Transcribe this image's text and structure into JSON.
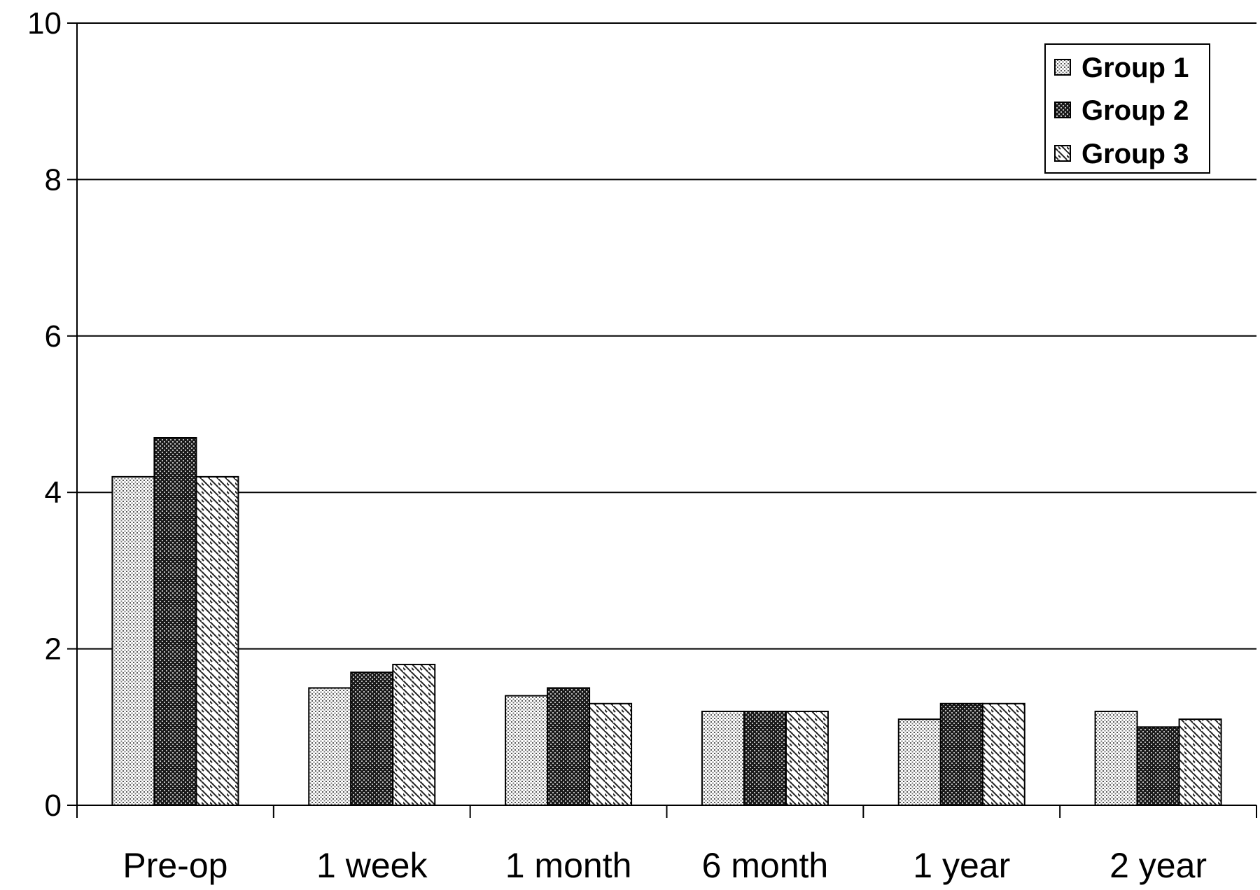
{
  "chart_data": {
    "type": "bar",
    "categories": [
      "Pre-op",
      "1 week",
      "1 month",
      "6 month",
      "1 year",
      "2 year"
    ],
    "series": [
      {
        "name": "Group 1",
        "values": [
          4.2,
          1.5,
          1.4,
          1.2,
          1.1,
          1.2
        ],
        "pattern": "dots"
      },
      {
        "name": "Group 2",
        "values": [
          4.7,
          1.7,
          1.5,
          1.2,
          1.3,
          1.0
        ],
        "pattern": "checker"
      },
      {
        "name": "Group 3",
        "values": [
          4.2,
          1.8,
          1.3,
          1.2,
          1.3,
          1.1
        ],
        "pattern": "hatch"
      }
    ],
    "yticks": [
      "0",
      "2",
      "4",
      "6",
      "8",
      "10"
    ],
    "ylim": [
      0,
      10
    ],
    "grid": true,
    "legend_position": "top-right"
  }
}
